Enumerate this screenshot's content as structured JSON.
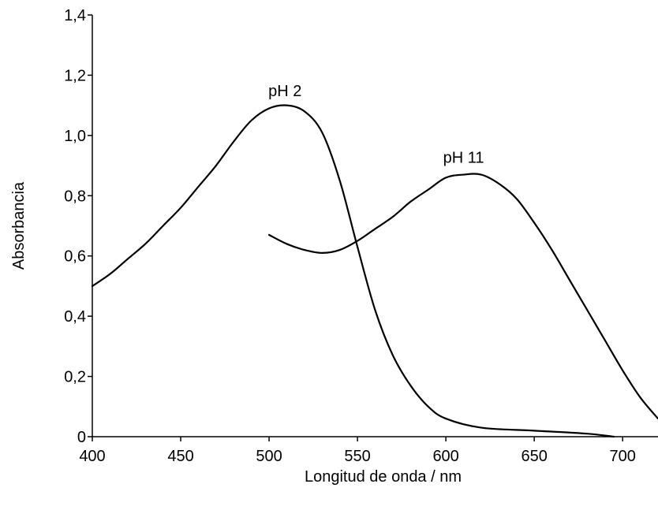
{
  "chart_data": {
    "type": "line",
    "title": "",
    "xlabel": "Longitud de onda / nm",
    "ylabel": "Absorbancia",
    "xlim": [
      400,
      720
    ],
    "ylim": [
      0,
      1.4
    ],
    "x_ticks": [
      400,
      450,
      500,
      550,
      600,
      650,
      700
    ],
    "x_tick_labels": [
      "400",
      "450",
      "500",
      "550",
      "600",
      "650",
      "700"
    ],
    "y_ticks": [
      0,
      0.2,
      0.4,
      0.6,
      0.8,
      1.0,
      1.2,
      1.4
    ],
    "y_tick_labels": [
      "0",
      "0,2",
      "0,4",
      "0,6",
      "0,8",
      "1,0",
      "1,2",
      "1,4"
    ],
    "grid": false,
    "legend": "none",
    "series": [
      {
        "name": "pH 2",
        "x": [
          400,
          410,
          420,
          430,
          440,
          450,
          460,
          470,
          480,
          490,
          500,
          510,
          520,
          530,
          540,
          550,
          560,
          570,
          580,
          590,
          600,
          620,
          650,
          680,
          695
        ],
        "y": [
          0.5,
          0.54,
          0.59,
          0.64,
          0.7,
          0.76,
          0.83,
          0.9,
          0.98,
          1.05,
          1.09,
          1.1,
          1.08,
          1.01,
          0.85,
          0.63,
          0.42,
          0.27,
          0.17,
          0.1,
          0.06,
          0.03,
          0.02,
          0.01,
          0.0
        ],
        "label": "pH 2"
      },
      {
        "name": "pH 11",
        "x": [
          500,
          510,
          520,
          530,
          540,
          550,
          560,
          570,
          580,
          590,
          600,
          610,
          620,
          630,
          640,
          650,
          660,
          670,
          680,
          690,
          700,
          710,
          720
        ],
        "y": [
          0.67,
          0.64,
          0.62,
          0.61,
          0.62,
          0.65,
          0.69,
          0.73,
          0.78,
          0.82,
          0.86,
          0.87,
          0.87,
          0.84,
          0.79,
          0.71,
          0.62,
          0.52,
          0.42,
          0.32,
          0.22,
          0.13,
          0.06
        ],
        "label": "pH 11"
      }
    ],
    "annotations": [
      {
        "text": "pH 2",
        "x": 509,
        "y": 1.13
      },
      {
        "text": "pH 11",
        "x": 610,
        "y": 0.91
      }
    ]
  }
}
